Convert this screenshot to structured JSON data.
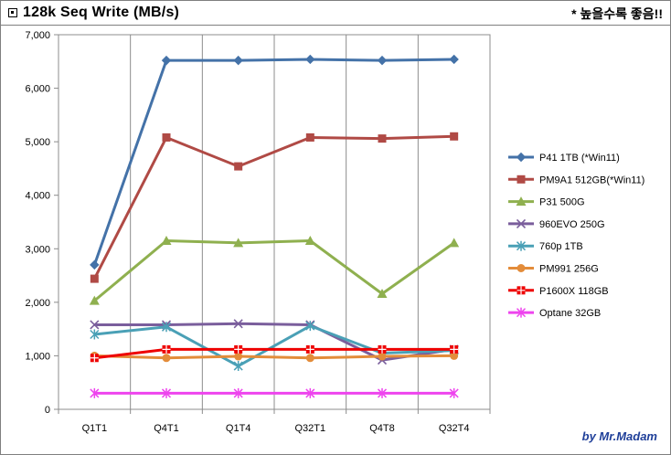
{
  "header": {
    "title": "128k Seq Write (MB/s)",
    "note": "* 높을수록 좋음!!"
  },
  "credit": "by Mr.Madam",
  "chart_data": {
    "type": "line",
    "title": "128k Seq Write (MB/s)",
    "xlabel": "",
    "ylabel": "",
    "categories": [
      "Q1T1",
      "Q4T1",
      "Q1T4",
      "Q32T1",
      "Q4T8",
      "Q32T4"
    ],
    "ylim": [
      0,
      7000
    ],
    "yticks": [
      0,
      1000,
      2000,
      3000,
      4000,
      5000,
      6000,
      7000
    ],
    "ytick_labels": [
      "0",
      "1,000",
      "2,000",
      "3,000",
      "4,000",
      "5,000",
      "6,000",
      "7,000"
    ],
    "grid": "vertical",
    "legend_position": "right",
    "series": [
      {
        "name": "P41 1TB (*Win11)",
        "color": "#4472a8",
        "marker": "diamond",
        "values": [
          2700,
          6520,
          6520,
          6540,
          6520,
          6540
        ]
      },
      {
        "name": "PM9A1 512GB(*Win11)",
        "color": "#b04a45",
        "marker": "square",
        "values": [
          2440,
          5080,
          4540,
          5080,
          5060,
          5100
        ]
      },
      {
        "name": "P31 500G",
        "color": "#8fb04f",
        "marker": "triangle",
        "values": [
          2030,
          3150,
          3110,
          3150,
          2160,
          3110
        ]
      },
      {
        "name": "960EVO 250G",
        "color": "#7a5e9c",
        "marker": "x",
        "values": [
          1580,
          1580,
          1600,
          1580,
          920,
          1120
        ]
      },
      {
        "name": "760p 1TB",
        "color": "#4aa0b6",
        "marker": "star",
        "values": [
          1400,
          1540,
          810,
          1560,
          1050,
          1100
        ]
      },
      {
        "name": "PM991 256G",
        "color": "#e38c3a",
        "marker": "circle",
        "values": [
          1000,
          960,
          990,
          960,
          990,
          1000
        ]
      },
      {
        "name": "P1600X 118GB",
        "color": "#ee0000",
        "marker": "plus-square",
        "values": [
          960,
          1120,
          1120,
          1120,
          1120,
          1120
        ]
      },
      {
        "name": "Optane 32GB",
        "color": "#ee44ee",
        "marker": "star",
        "values": [
          300,
          300,
          300,
          300,
          300,
          300
        ]
      }
    ]
  }
}
